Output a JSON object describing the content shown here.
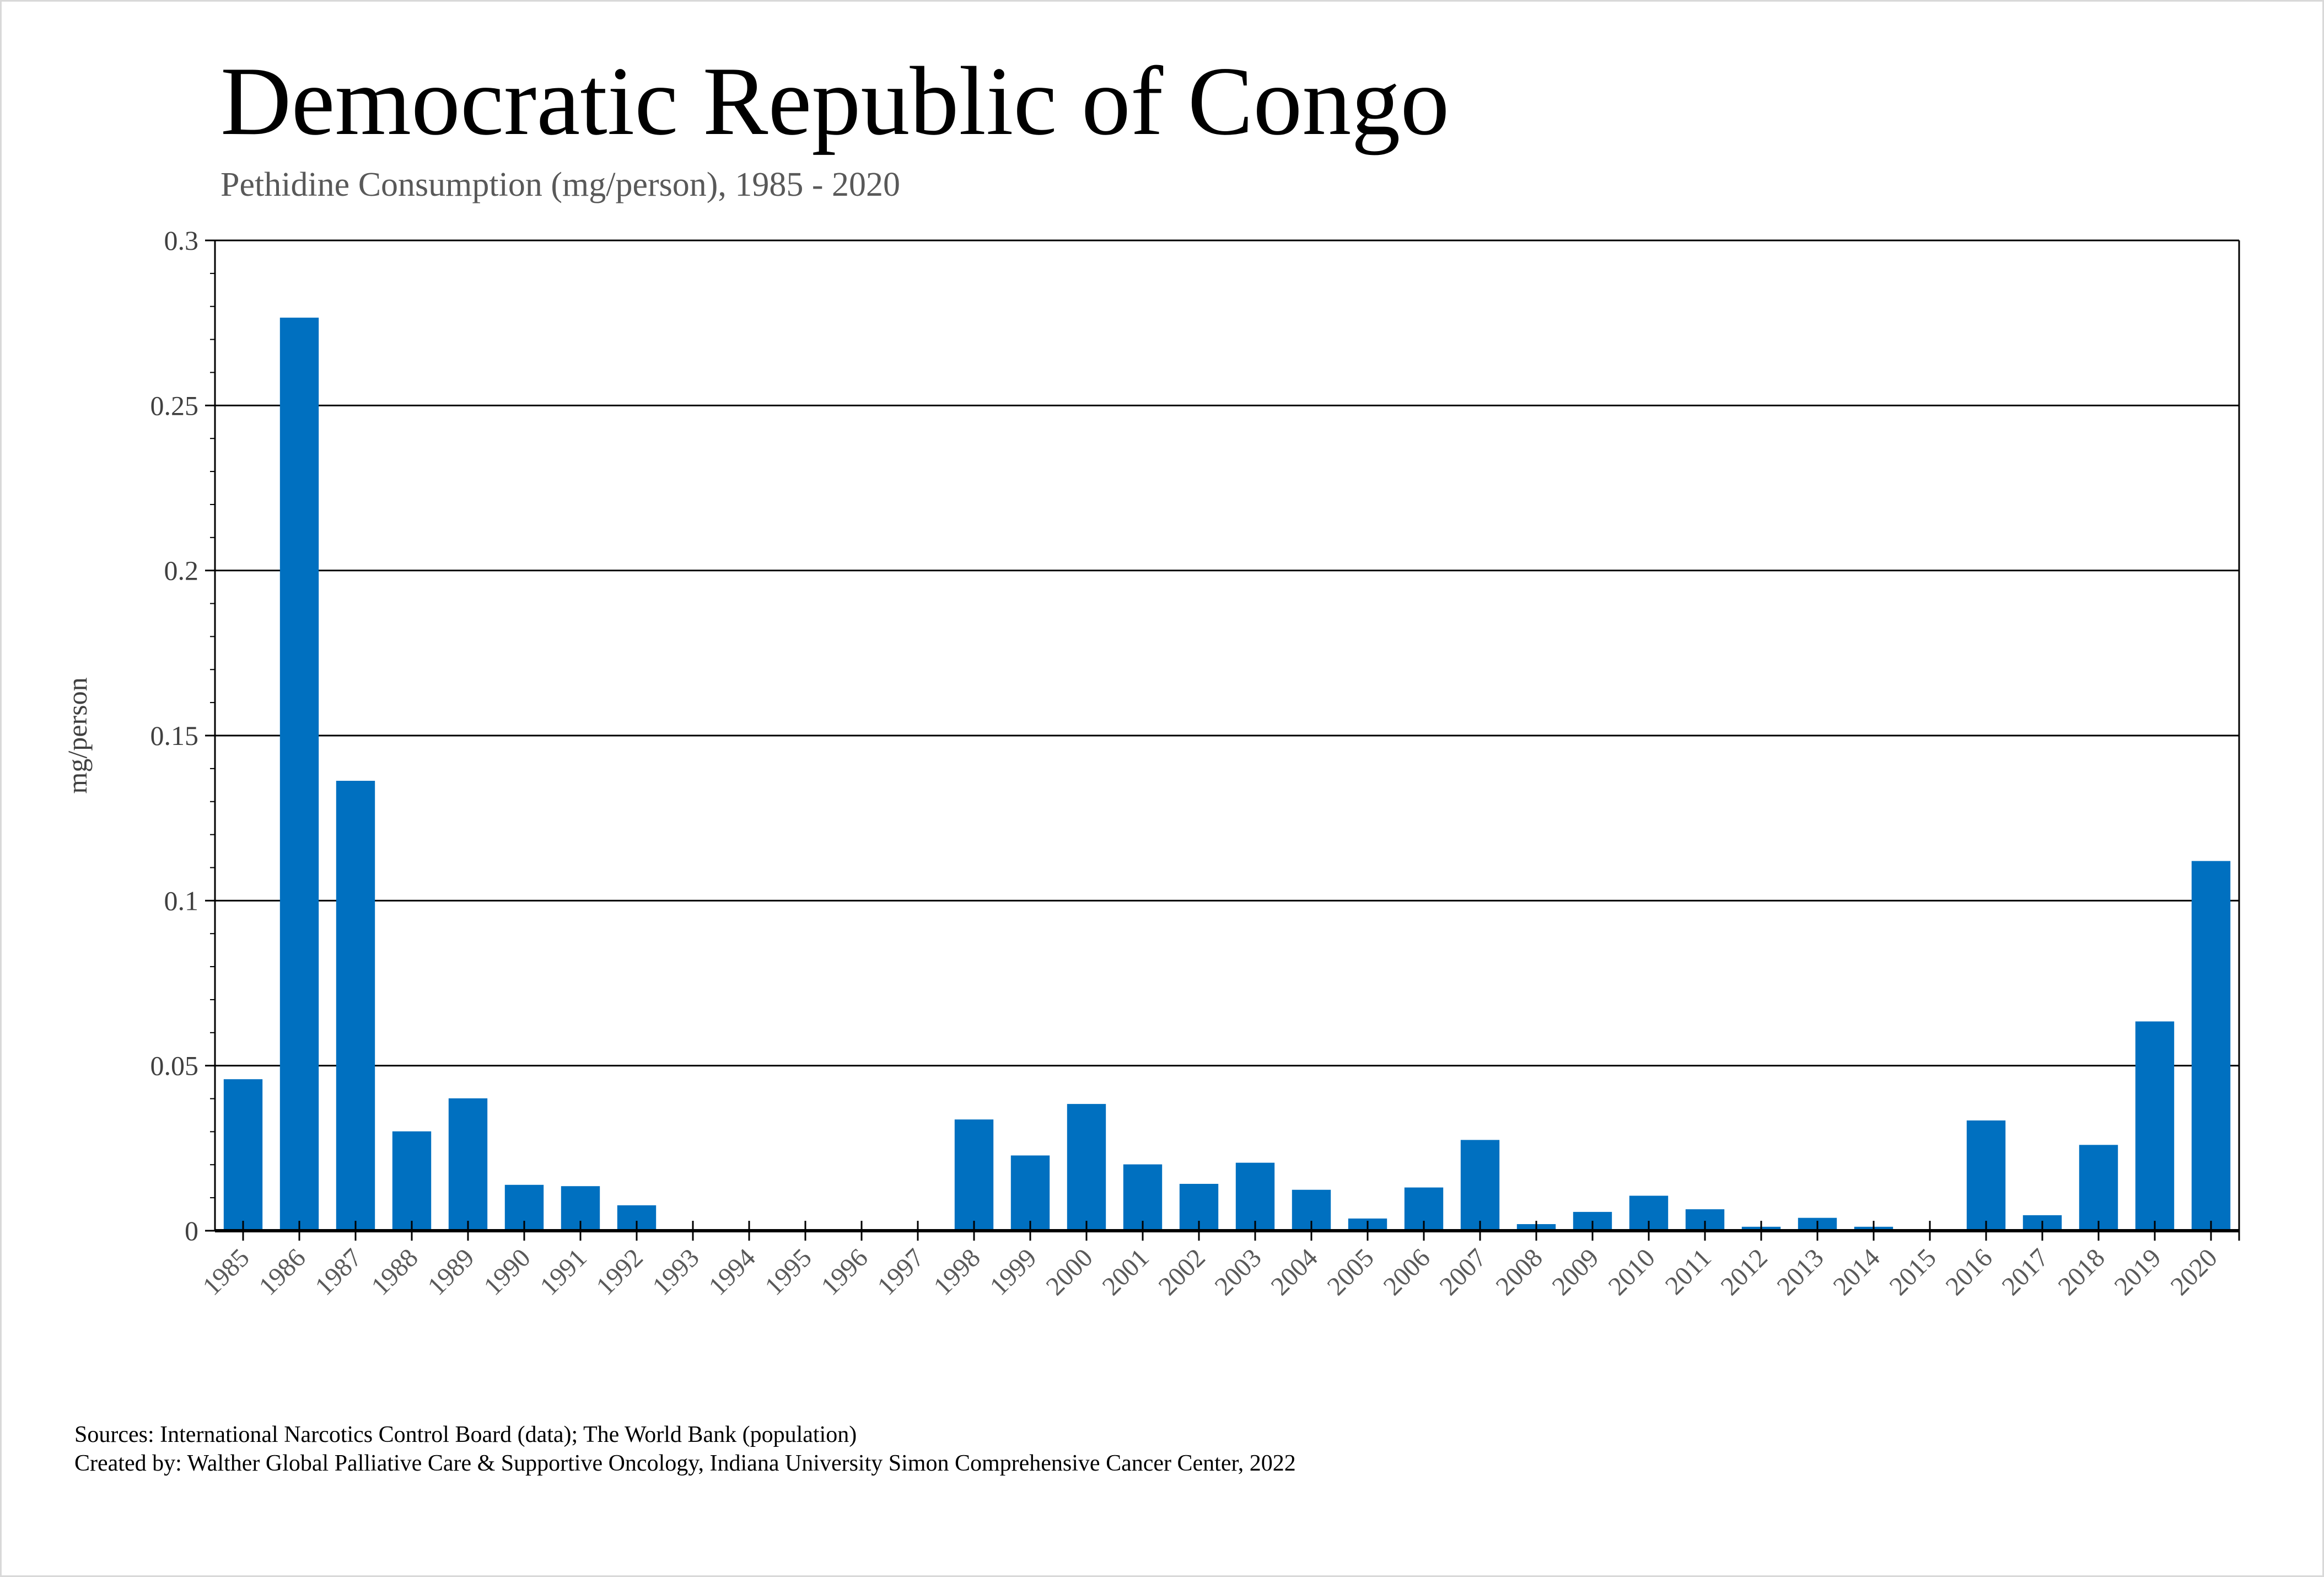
{
  "chart_data": {
    "type": "bar",
    "title": "Democratic Republic of Congo",
    "subtitle": "Pethidine Consumption (mg/person), 1985 - 2020",
    "xlabel": "",
    "ylabel": "mg/person",
    "ylim": [
      0,
      0.3
    ],
    "yticks": [
      "0",
      "0.05",
      "0.1",
      "0.15",
      "0.2",
      "0.25",
      "0.3"
    ],
    "grid": true,
    "bar_color": "#0070C0",
    "categories": [
      "1985",
      "1986",
      "1987",
      "1988",
      "1989",
      "1990",
      "1991",
      "1992",
      "1993",
      "1994",
      "1995",
      "1996",
      "1997",
      "1998",
      "1999",
      "2000",
      "2001",
      "2002",
      "2003",
      "2004",
      "2005",
      "2006",
      "2007",
      "2008",
      "2009",
      "2010",
      "2011",
      "2012",
      "2013",
      "2014",
      "2015",
      "2016",
      "2017",
      "2018",
      "2019",
      "2020"
    ],
    "values": [
      0.0459,
      0.2766,
      0.1363,
      0.0301,
      0.0401,
      0.0139,
      0.0135,
      0.0077,
      0,
      0,
      0,
      0.0005,
      0.0003,
      0.0337,
      0.0228,
      0.0384,
      0.0201,
      0.0142,
      0.0206,
      0.0124,
      0.0037,
      0.0131,
      0.0275,
      0.002,
      0.0057,
      0.0106,
      0.0065,
      0.0012,
      0.0039,
      0.0012,
      0,
      0.0334,
      0.0047,
      0.026,
      0.0634,
      0.112
    ]
  },
  "footer": {
    "sources": "Sources: International Narcotics Control Board (data); The World Bank (population)",
    "created_by": "Created by: Walther Global Palliative Care & Supportive Oncology, Indiana University Simon Comprehensive Cancer Center, 2022"
  }
}
